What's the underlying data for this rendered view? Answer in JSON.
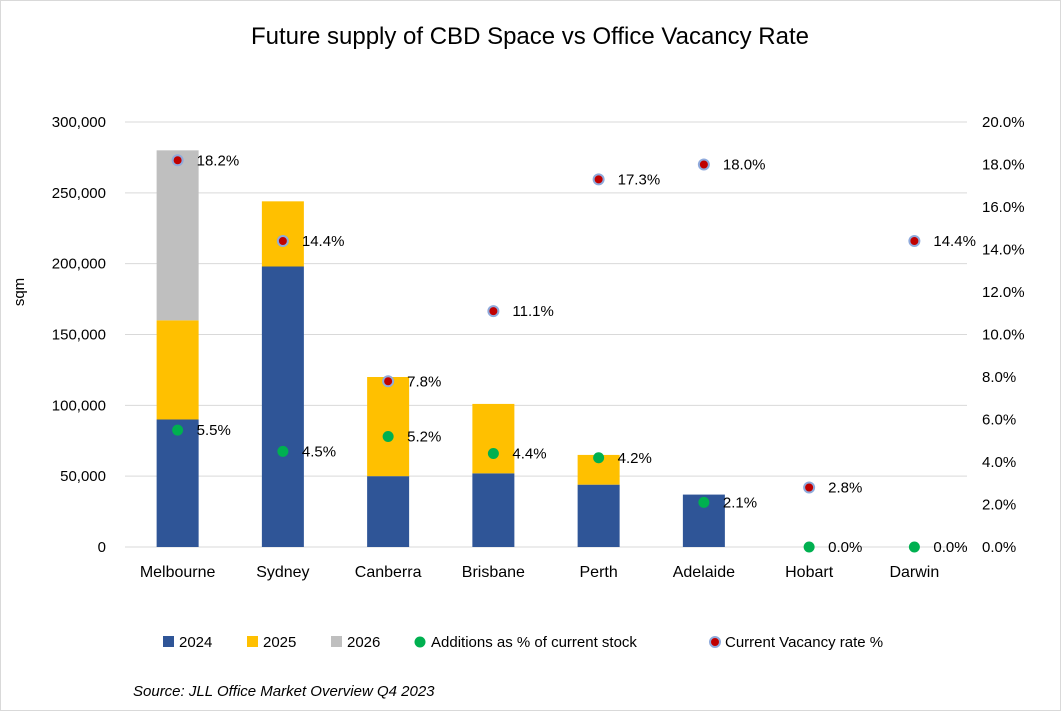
{
  "chart_data": {
    "type": "bar",
    "title": "Future supply of CBD Space vs Office Vacancy Rate",
    "ylabel": "sqm",
    "ylim": [
      0,
      300000
    ],
    "y2lim": [
      0,
      0.2
    ],
    "y_ticks": [
      0,
      50000,
      100000,
      150000,
      200000,
      250000,
      300000
    ],
    "y_tick_labels": [
      "0",
      "50,000",
      "100,000",
      "150,000",
      "200,000",
      "250,000",
      "300,000"
    ],
    "y2_ticks": [
      0,
      0.02,
      0.04,
      0.06,
      0.08,
      0.1,
      0.12,
      0.14,
      0.16,
      0.18,
      0.2
    ],
    "y2_tick_labels": [
      "0.0%",
      "2.0%",
      "4.0%",
      "6.0%",
      "8.0%",
      "10.0%",
      "12.0%",
      "14.0%",
      "16.0%",
      "18.0%",
      "20.0%"
    ],
    "categories": [
      "Melbourne",
      "Sydney",
      "Canberra",
      "Brisbane",
      "Perth",
      "Adelaide",
      "Hobart",
      "Darwin"
    ],
    "series": [
      {
        "name": "2024",
        "kind": "bar",
        "color": "#2f5597",
        "values": [
          90000,
          198000,
          50000,
          52000,
          44000,
          37000,
          0,
          0
        ]
      },
      {
        "name": "2025",
        "kind": "bar",
        "color": "#ffc000",
        "values": [
          70000,
          46000,
          70000,
          49000,
          21000,
          0,
          0,
          0
        ]
      },
      {
        "name": "2026",
        "kind": "bar",
        "color": "#bfbfbf",
        "values": [
          120000,
          0,
          0,
          0,
          0,
          0,
          0,
          0
        ]
      },
      {
        "name": "Additions as % of current stock",
        "kind": "point",
        "axis": "right",
        "color": "#00b050",
        "values": [
          0.055,
          0.045,
          0.052,
          0.044,
          0.042,
          0.021,
          0.0,
          0.0
        ],
        "labels": [
          "5.5%",
          "4.5%",
          "5.2%",
          "4.4%",
          "4.2%",
          "2.1%",
          "0.0%",
          "0.0%"
        ]
      },
      {
        "name": "Current Vacancy rate %",
        "kind": "point",
        "axis": "right",
        "color": "#c00000",
        "edge": "#8faadc",
        "values": [
          0.182,
          0.144,
          0.078,
          0.111,
          0.173,
          0.18,
          0.028,
          0.144
        ],
        "labels": [
          "18.2%",
          "14.4%",
          "7.8%",
          "11.1%",
          "17.3%",
          "18.0%",
          "2.8%",
          "14.4%"
        ]
      }
    ],
    "grid": true,
    "legend": "bottom",
    "source": "Source: JLL Office Market Overview  Q4 2023"
  }
}
